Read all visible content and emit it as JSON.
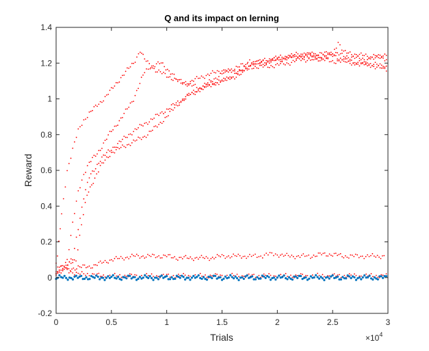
{
  "chart_data": {
    "type": "scatter",
    "title": "Q and its impact on lerning",
    "xlabel": "Trials",
    "ylabel": "Reward",
    "xlim": [
      0,
      30000
    ],
    "ylim": [
      -0.2,
      1.4
    ],
    "x_exponent_label": "×10",
    "x_exponent_power": "4",
    "x_ticks": [
      0,
      5000,
      10000,
      15000,
      20000,
      25000,
      30000
    ],
    "x_tick_labels": [
      "0",
      "0.5",
      "1",
      "1.5",
      "2",
      "2.5",
      "3"
    ],
    "y_ticks": [
      -0.2,
      0,
      0.2,
      0.4,
      0.6,
      0.8,
      1.0,
      1.2,
      1.4
    ],
    "y_tick_labels": [
      "-0.2",
      "0",
      "0.2",
      "0.4",
      "0.6",
      "0.8",
      "1",
      "1.2",
      "1.4"
    ],
    "grid": false,
    "legend": "none",
    "series": [
      {
        "color": "#ff0000",
        "points": [
          [
            0,
            0.02
          ],
          [
            250,
            0.2
          ],
          [
            500,
            0.35
          ],
          [
            1000,
            0.6
          ],
          [
            1500,
            0.72
          ],
          [
            2000,
            0.82
          ],
          [
            2500,
            0.88
          ],
          [
            3000,
            0.92
          ],
          [
            4000,
            0.98
          ],
          [
            5000,
            1.05
          ],
          [
            6000,
            1.13
          ],
          [
            7000,
            1.2
          ],
          [
            7600,
            1.27
          ],
          [
            8000,
            1.22
          ],
          [
            9000,
            1.16
          ],
          [
            10000,
            1.13
          ],
          [
            11000,
            1.1
          ],
          [
            12000,
            1.09
          ],
          [
            13000,
            1.12
          ],
          [
            14000,
            1.14
          ],
          [
            15000,
            1.16
          ],
          [
            16000,
            1.15
          ],
          [
            17000,
            1.17
          ],
          [
            18000,
            1.18
          ],
          [
            19000,
            1.18
          ],
          [
            20000,
            1.19
          ],
          [
            21000,
            1.2
          ],
          [
            22000,
            1.22
          ],
          [
            23000,
            1.22
          ],
          [
            24000,
            1.23
          ],
          [
            25000,
            1.24
          ],
          [
            26000,
            1.22
          ],
          [
            27000,
            1.2
          ],
          [
            28000,
            1.19
          ],
          [
            29000,
            1.18
          ],
          [
            30000,
            1.16
          ]
        ]
      },
      {
        "color": "#ff0000",
        "points": [
          [
            0,
            0.02
          ],
          [
            1000,
            0.1
          ],
          [
            1500,
            0.3
          ],
          [
            2000,
            0.48
          ],
          [
            2500,
            0.58
          ],
          [
            3000,
            0.64
          ],
          [
            4000,
            0.72
          ],
          [
            5000,
            0.82
          ],
          [
            6000,
            0.9
          ],
          [
            7000,
            1.0
          ],
          [
            8000,
            1.15
          ],
          [
            8500,
            1.18
          ],
          [
            9500,
            1.2
          ],
          [
            10500,
            1.14
          ],
          [
            11000,
            1.1
          ],
          [
            12000,
            1.08
          ],
          [
            13000,
            1.06
          ],
          [
            14000,
            1.08
          ],
          [
            15000,
            1.1
          ],
          [
            16000,
            1.12
          ],
          [
            17000,
            1.15
          ],
          [
            17500,
            1.22
          ],
          [
            18000,
            1.2
          ],
          [
            19000,
            1.22
          ],
          [
            20000,
            1.23
          ],
          [
            21000,
            1.24
          ],
          [
            22000,
            1.25
          ],
          [
            23000,
            1.25
          ],
          [
            24000,
            1.24
          ],
          [
            25000,
            1.25
          ],
          [
            25500,
            1.32
          ],
          [
            26000,
            1.26
          ],
          [
            27000,
            1.25
          ],
          [
            28000,
            1.24
          ],
          [
            29000,
            1.23
          ],
          [
            30000,
            1.22
          ]
        ]
      },
      {
        "color": "#ff0000",
        "points": [
          [
            0,
            0.02
          ],
          [
            1500,
            0.1
          ],
          [
            2000,
            0.28
          ],
          [
            2500,
            0.45
          ],
          [
            3000,
            0.56
          ],
          [
            4000,
            0.66
          ],
          [
            5000,
            0.72
          ],
          [
            6000,
            0.77
          ],
          [
            7000,
            0.82
          ],
          [
            8000,
            0.86
          ],
          [
            9000,
            0.9
          ],
          [
            10000,
            0.94
          ],
          [
            11000,
            0.98
          ],
          [
            12000,
            1.02
          ],
          [
            13000,
            1.06
          ],
          [
            14000,
            1.1
          ],
          [
            15000,
            1.14
          ],
          [
            16000,
            1.17
          ],
          [
            17000,
            1.19
          ],
          [
            18000,
            1.2
          ],
          [
            19000,
            1.21
          ],
          [
            20000,
            1.22
          ],
          [
            21000,
            1.23
          ],
          [
            22000,
            1.24
          ],
          [
            23000,
            1.23
          ],
          [
            24000,
            1.22
          ],
          [
            25000,
            1.21
          ],
          [
            26000,
            1.21
          ],
          [
            27000,
            1.2
          ],
          [
            28000,
            1.2
          ],
          [
            29000,
            1.19
          ],
          [
            30000,
            1.18
          ]
        ]
      },
      {
        "color": "#ff0000",
        "points": [
          [
            0,
            0.02
          ],
          [
            1800,
            0.1
          ],
          [
            2300,
            0.3
          ],
          [
            2800,
            0.46
          ],
          [
            3500,
            0.56
          ],
          [
            4000,
            0.62
          ],
          [
            5000,
            0.7
          ],
          [
            6000,
            0.73
          ],
          [
            7000,
            0.76
          ],
          [
            8000,
            0.79
          ],
          [
            9000,
            0.84
          ],
          [
            10000,
            0.9
          ],
          [
            11000,
            0.97
          ],
          [
            12000,
            1.02
          ],
          [
            13000,
            1.05
          ],
          [
            14000,
            1.08
          ],
          [
            15000,
            1.1
          ],
          [
            16000,
            1.13
          ],
          [
            17000,
            1.16
          ],
          [
            18000,
            1.2
          ],
          [
            19000,
            1.2
          ],
          [
            20000,
            1.22
          ],
          [
            21000,
            1.23
          ],
          [
            22000,
            1.24
          ],
          [
            23000,
            1.25
          ],
          [
            24000,
            1.25
          ],
          [
            25000,
            1.26
          ],
          [
            26000,
            1.24
          ],
          [
            27000,
            1.23
          ],
          [
            28000,
            1.22
          ],
          [
            29000,
            1.24
          ],
          [
            30000,
            1.25
          ]
        ]
      },
      {
        "color": "#ff0000",
        "points": [
          [
            1000,
            0.04
          ],
          [
            2000,
            0.06
          ],
          [
            3000,
            0.06
          ],
          [
            4000,
            0.08
          ],
          [
            5000,
            0.1
          ],
          [
            6000,
            0.11
          ],
          [
            7000,
            0.12
          ],
          [
            8000,
            0.12
          ],
          [
            9000,
            0.12
          ],
          [
            10000,
            0.12
          ],
          [
            11000,
            0.11
          ],
          [
            12000,
            0.11
          ],
          [
            13000,
            0.11
          ],
          [
            14000,
            0.11
          ],
          [
            15000,
            0.12
          ],
          [
            17500,
            0.12
          ],
          [
            18000,
            0.12
          ],
          [
            18500,
            0.12
          ],
          [
            19000,
            0.13
          ],
          [
            19500,
            0.13
          ],
          [
            20000,
            0.13
          ],
          [
            21000,
            0.12
          ],
          [
            22500,
            0.12
          ],
          [
            23000,
            0.12
          ],
          [
            24000,
            0.13
          ],
          [
            25000,
            0.13
          ],
          [
            26000,
            0.12
          ],
          [
            28000,
            0.12
          ],
          [
            29800,
            0.12
          ]
        ]
      },
      {
        "color": "#ff0000",
        "points": [
          [
            0,
            0.08
          ],
          [
            300,
            0.06
          ],
          [
            600,
            0.05
          ],
          [
            1000,
            0.04
          ],
          [
            1500,
            0.03
          ],
          [
            2000,
            0.02
          ],
          [
            2500,
            0.02
          ],
          [
            3000,
            0.02
          ],
          [
            4000,
            0.01
          ],
          [
            5000,
            0.01
          ],
          [
            10000,
            0.01
          ],
          [
            15000,
            0.01
          ],
          [
            20000,
            0.01
          ],
          [
            25000,
            0.01
          ],
          [
            30000,
            0.01
          ]
        ]
      },
      {
        "color": "#0072bd",
        "points": [
          [
            0,
            0.0
          ],
          [
            5000,
            0.0
          ],
          [
            10000,
            0.0
          ],
          [
            15000,
            0.0
          ],
          [
            20000,
            0.0
          ],
          [
            25000,
            0.0
          ],
          [
            30000,
            0.0
          ]
        ]
      }
    ]
  }
}
